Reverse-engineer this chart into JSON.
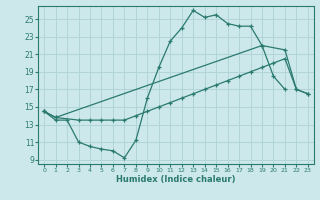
{
  "xlabel": "Humidex (Indice chaleur)",
  "bg_color": "#cce8ea",
  "grid_color": "#b0d4d8",
  "line_color": "#2a7a70",
  "xlim": [
    -0.5,
    23.5
  ],
  "ylim": [
    8.5,
    26.5
  ],
  "xticks": [
    0,
    1,
    2,
    3,
    4,
    5,
    6,
    7,
    8,
    9,
    10,
    11,
    12,
    13,
    14,
    15,
    16,
    17,
    18,
    19,
    20,
    21,
    22,
    23
  ],
  "yticks": [
    9,
    11,
    13,
    15,
    17,
    19,
    21,
    23,
    25
  ],
  "line1_x": [
    0,
    1,
    2,
    3,
    4,
    5,
    6,
    7,
    8,
    9,
    10,
    11,
    12,
    13,
    14,
    15,
    16,
    17,
    18,
    19,
    20,
    21
  ],
  "line1_y": [
    14.5,
    13.5,
    13.5,
    11.0,
    10.5,
    10.2,
    10.0,
    9.2,
    11.2,
    16.0,
    19.5,
    22.5,
    24.0,
    26.0,
    25.2,
    25.5,
    24.5,
    24.2,
    24.2,
    22.0,
    18.5,
    17.0
  ],
  "line2_x": [
    0,
    1,
    19,
    21,
    22,
    23
  ],
  "line2_y": [
    14.5,
    13.8,
    22.0,
    21.5,
    17.0,
    16.5
  ],
  "line3_x": [
    0,
    1,
    3,
    4,
    5,
    6,
    7,
    8,
    9,
    10,
    11,
    12,
    13,
    14,
    15,
    16,
    17,
    18,
    19,
    20,
    21,
    22,
    23
  ],
  "line3_y": [
    14.5,
    13.8,
    13.5,
    13.5,
    13.5,
    13.5,
    13.5,
    14.0,
    14.5,
    15.0,
    15.5,
    16.0,
    16.5,
    17.0,
    17.5,
    18.0,
    18.5,
    19.0,
    19.5,
    20.0,
    20.5,
    17.0,
    16.5
  ]
}
